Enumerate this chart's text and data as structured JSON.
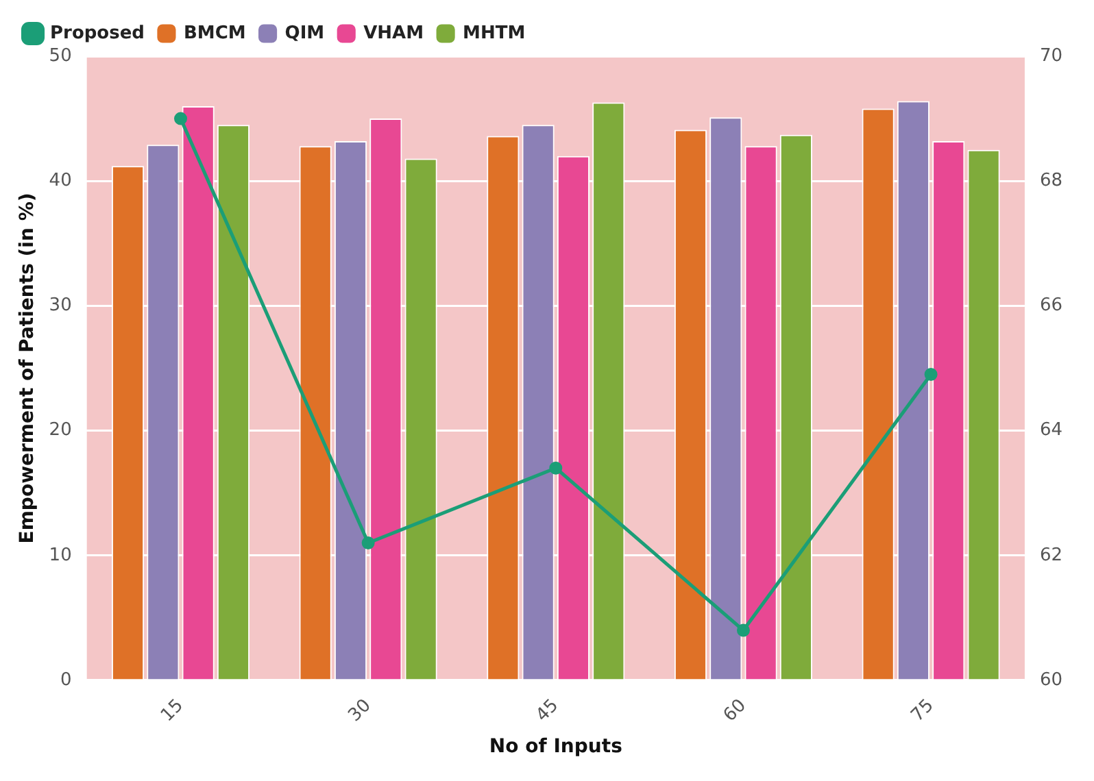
{
  "chart_data": {
    "type": "bar",
    "xlabel": "No of Inputs",
    "ylabel": "Empowerment of Patients (in %)",
    "categories": [
      "15",
      "30",
      "45",
      "60",
      "75"
    ],
    "series": [
      {
        "name": "Proposed",
        "type": "line",
        "axis": "y2",
        "color": "#1b9e77",
        "values": [
          69.0,
          62.2,
          63.4,
          60.8,
          64.9
        ]
      },
      {
        "name": "BMCM",
        "color": "#df7127",
        "values": [
          41.2,
          42.8,
          43.6,
          44.1,
          45.8
        ]
      },
      {
        "name": "QIM",
        "color": "#8c80b6",
        "values": [
          42.9,
          43.2,
          44.5,
          45.1,
          46.4
        ]
      },
      {
        "name": "VHAM",
        "color": "#e84893",
        "values": [
          46.0,
          45.0,
          42.0,
          42.8,
          43.2
        ]
      },
      {
        "name": "MHTM",
        "color": "#7fab3b",
        "values": [
          44.5,
          41.8,
          46.3,
          43.7,
          42.5
        ]
      }
    ],
    "ylim": [
      0,
      50
    ],
    "yticks": [
      0,
      10,
      20,
      30,
      40,
      50
    ],
    "y2lim": [
      60,
      70
    ],
    "y2ticks": [
      60,
      62,
      64,
      66,
      68,
      70
    ],
    "grid": "y",
    "legend": "top left",
    "marker": "circle",
    "line_style": "solid"
  }
}
